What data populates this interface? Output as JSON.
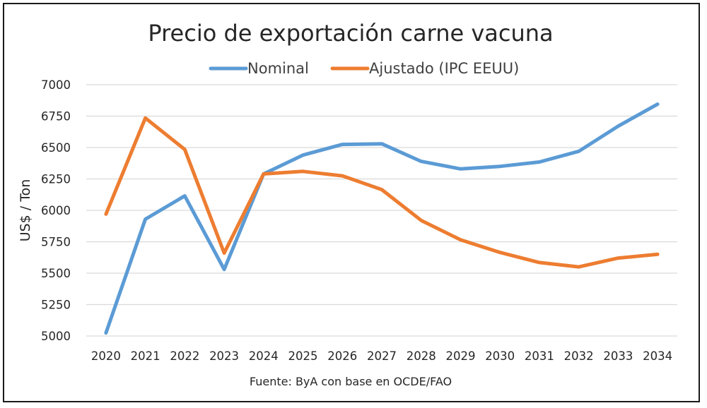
{
  "chart_data": {
    "type": "line",
    "title": "Precio de exportación carne vacuna",
    "ylabel": "US$ / Ton",
    "xlabel": "",
    "ylim": [
      5000,
      7000
    ],
    "yticks": [
      5000,
      5250,
      5500,
      5750,
      6000,
      6250,
      6500,
      6750,
      7000
    ],
    "grid": true,
    "legend_position": "top",
    "categories": [
      "2020",
      "2021",
      "2022",
      "2023",
      "2024",
      "2025",
      "2026",
      "2027",
      "2028",
      "2029",
      "2030",
      "2031",
      "2032",
      "2033",
      "2034"
    ],
    "series": [
      {
        "name": "Nominal",
        "color": "#5b9bd5",
        "values": [
          5025,
          5930,
          6115,
          5530,
          6290,
          6440,
          6525,
          6530,
          6390,
          6330,
          6350,
          6385,
          6470,
          6670,
          6845
        ]
      },
      {
        "name": "Ajustado (IPC EEUU)",
        "color": "#ed7d31",
        "values": [
          5970,
          6735,
          6485,
          5660,
          6290,
          6310,
          6275,
          6165,
          5920,
          5765,
          5665,
          5585,
          5550,
          5620,
          5650
        ]
      }
    ],
    "source": "Fuente: ByA con base en OCDE/FAO"
  }
}
